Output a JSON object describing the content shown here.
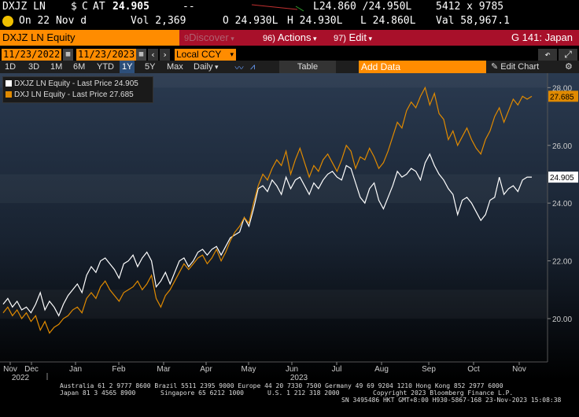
{
  "quote": {
    "ticker": "DXJZ LN",
    "currency_mark": "$",
    "c_label": "C",
    "at_label": "AT",
    "last": "24.905",
    "change": "--",
    "bid_ask": "L24.860 /24.950L",
    "size": "5412 x 9785",
    "date_label": "On 22 Nov d",
    "vol": "Vol 2,369",
    "open": "O 24.930L",
    "high": "H 24.930L",
    "low": "L 24.860L",
    "val": "Val 58,967.1"
  },
  "command_bar": {
    "security": "DXJZ LN Equity",
    "discover_num": "9",
    "discover": "Discover",
    "actions_num": "96)",
    "actions": "Actions",
    "edit_num": "97)",
    "edit": "Edit",
    "graph_title": "G 141: Japan"
  },
  "date_bar": {
    "start": "11/23/2022",
    "end": "11/23/2023",
    "currency": "Local CCY"
  },
  "period_bar": {
    "periods": [
      "1D",
      "3D",
      "1M",
      "6M",
      "YTD",
      "1Y",
      "5Y",
      "Max"
    ],
    "active": "1Y",
    "frequency": "Daily",
    "table_label": "Table",
    "add_data_placeholder": "Add Data",
    "edit_chart_label": "Edit Chart"
  },
  "legend": [
    {
      "text": "DXJZ LN Equity - Last Price 24.905",
      "color": "#ffffff"
    },
    {
      "text": "DXJ LN Equity - Last Price  27.685",
      "color": "#e08a00"
    }
  ],
  "chart_data": {
    "type": "line",
    "ylim": [
      18.5,
      28.5
    ],
    "yticks": [
      "28.00",
      "26.00",
      "24.00",
      "22.00",
      "20.00"
    ],
    "ytick_values": [
      28,
      26,
      24,
      22,
      20
    ],
    "months": [
      "Nov",
      "Dec",
      "Jan",
      "Feb",
      "Mar",
      "Apr",
      "May",
      "Jun",
      "Jul",
      "Aug",
      "Sep",
      "Oct",
      "Nov"
    ],
    "years": [
      "2022",
      "2023"
    ],
    "series": [
      {
        "name": "DXJZ LN Equity - Last Price",
        "color": "#ffffff",
        "last_label": "24.905",
        "values": [
          20.5,
          20.7,
          20.4,
          20.6,
          20.3,
          20.4,
          20.2,
          20.5,
          20.9,
          20.3,
          20.6,
          20.4,
          20.1,
          20.5,
          20.8,
          21.0,
          21.2,
          20.9,
          21.5,
          21.8,
          21.6,
          22.0,
          22.1,
          21.9,
          21.7,
          21.4,
          21.9,
          22.0,
          22.2,
          21.8,
          22.1,
          22.3,
          22.0,
          21.1,
          21.3,
          21.6,
          21.2,
          21.6,
          22.0,
          22.1,
          21.8,
          22.0,
          22.3,
          22.4,
          22.2,
          22.4,
          22.5,
          22.2,
          22.5,
          22.8,
          22.9,
          23.0,
          23.5,
          23.2,
          23.8,
          24.5,
          24.6,
          24.4,
          24.8,
          24.6,
          24.3,
          24.9,
          24.5,
          24.8,
          24.9,
          24.6,
          24.3,
          24.7,
          24.5,
          24.8,
          25.0,
          25.1,
          24.9,
          24.8,
          25.3,
          25.2,
          24.7,
          24.2,
          24.0,
          24.5,
          24.7,
          24.1,
          23.8,
          24.2,
          24.6,
          25.1,
          24.9,
          25.0,
          25.2,
          25.1,
          24.8,
          25.4,
          25.7,
          25.3,
          25.0,
          24.8,
          24.5,
          24.3,
          23.6,
          24.1,
          24.2,
          24.0,
          23.7,
          23.4,
          23.6,
          24.1,
          24.2,
          24.9,
          24.3,
          24.5,
          24.6,
          24.4,
          24.8,
          24.9,
          24.9
        ]
      },
      {
        "name": "DXJ LN Equity - Last Price",
        "color": "#e08a00",
        "last_label": "27.685",
        "values": [
          20.2,
          20.4,
          20.1,
          20.3,
          20.0,
          20.2,
          19.9,
          20.1,
          19.6,
          19.9,
          19.5,
          19.7,
          19.8,
          20.0,
          20.1,
          20.3,
          20.4,
          20.2,
          20.7,
          20.9,
          20.7,
          21.1,
          21.3,
          21.0,
          20.8,
          20.6,
          20.9,
          21.0,
          21.1,
          21.3,
          21.0,
          21.2,
          21.5,
          20.7,
          20.4,
          20.8,
          21.0,
          21.3,
          21.6,
          21.9,
          21.7,
          21.9,
          22.1,
          22.2,
          21.9,
          22.1,
          22.4,
          22.0,
          22.3,
          22.7,
          23.0,
          23.2,
          23.5,
          23.3,
          24.0,
          24.6,
          25.0,
          24.8,
          25.2,
          25.5,
          25.3,
          25.8,
          25.0,
          25.5,
          25.9,
          25.4,
          24.9,
          25.3,
          25.1,
          25.5,
          25.7,
          25.4,
          25.1,
          25.5,
          26.0,
          25.8,
          25.2,
          25.6,
          25.5,
          25.9,
          25.6,
          25.2,
          25.4,
          25.8,
          26.3,
          26.8,
          26.6,
          27.2,
          27.5,
          27.3,
          27.7,
          28.0,
          27.4,
          27.8,
          27.1,
          26.9,
          26.2,
          26.5,
          26.0,
          26.3,
          26.6,
          26.2,
          25.9,
          25.7,
          26.2,
          26.5,
          27.0,
          27.3,
          26.8,
          27.2,
          27.6,
          27.4,
          27.7,
          27.6,
          27.7
        ]
      }
    ],
    "grid": false
  },
  "footer": {
    "line1": "Australia 61 2 9777 8600 Brazil 5511 2395 9000 Europe 44 20 7330 7500 Germany 49 69 9204 1210 Hong Kong 852 2977 6000",
    "line2a": "Japan 81 3 4565 8900",
    "line2b": "Singapore 65 6212 1000",
    "line2c": "U.S. 1 212 318 2000",
    "line2d": "Copyright 2023 Bloomberg Finance L.P.",
    "line3": "SN 3495486 HKT  GMT+8:00 H930-5867-168 23-Nov-2023 15:08:38"
  }
}
